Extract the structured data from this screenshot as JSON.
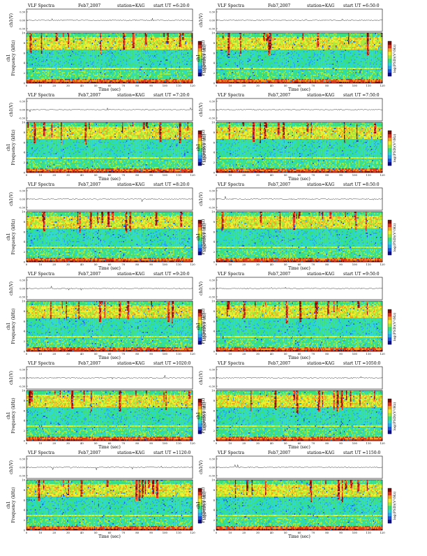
{
  "colors": {
    "colormap": [
      "#0b0b8c",
      "#1f4fe0",
      "#2aa6f0",
      "#29d8d0",
      "#39e07a",
      "#a6e83a",
      "#f0ee2a",
      "#f6a21d",
      "#e2361c",
      "#7a0c0c"
    ],
    "background": "#ffffff",
    "axis": "#000000"
  },
  "chart_data": [
    {
      "type": "heatmap",
      "title_left": "VLF Spectra",
      "date": "Feb7,2007",
      "station": "station=KAG",
      "start": "start UT =6:20:0",
      "top_ylabel": "ch1(V)",
      "top_yticks": [
        "0.30",
        "0.00",
        "-0.30"
      ],
      "ylabel_channel": "ch1",
      "ylabel": "Frequency (kHz)",
      "yticks": [
        "0",
        "2",
        "4",
        "6",
        "8",
        "10"
      ],
      "xlabel": "Time (sec)",
      "xticks": [
        "0",
        "10",
        "20",
        "30",
        "40",
        "50",
        "60",
        "70",
        "80",
        "90",
        "100",
        "110",
        "120"
      ],
      "colorbar_label": "log(PSD)(V²/Hz)",
      "xlim": [
        0,
        120
      ],
      "ylim": [
        0,
        10
      ]
    },
    {
      "type": "heatmap",
      "title_left": "VLF Spectra",
      "date": "Feb7,2007",
      "station": "station=KAG",
      "start": "start UT =6:50:0",
      "top_ylabel": "ch1(V)",
      "top_yticks": [
        "0.30",
        "0.00",
        "-0.30"
      ],
      "ylabel_channel": "ch1",
      "ylabel": "Frequency (kHz)",
      "yticks": [
        "0",
        "2",
        "4",
        "6",
        "8",
        "10"
      ],
      "xlabel": "Time (sec)",
      "xticks": [
        "0",
        "10",
        "20",
        "30",
        "40",
        "50",
        "60",
        "70",
        "80",
        "90",
        "100",
        "110",
        "120"
      ],
      "colorbar_label": "log(PSD)(V²/Hz)",
      "xlim": [
        0,
        120
      ],
      "ylim": [
        0,
        10
      ]
    },
    {
      "type": "heatmap",
      "title_left": "VLF Spectra",
      "date": "Feb7,2007",
      "station": "station=KAG",
      "start": "start UT =7:20:0",
      "top_ylabel": "ch1(V)",
      "top_yticks": [
        "0.30",
        "0.00",
        "-0.30"
      ],
      "ylabel_channel": "ch1",
      "ylabel": "Frequency (kHz)",
      "yticks": [
        "0",
        "2",
        "4",
        "6",
        "8",
        "10"
      ],
      "xlabel": "Time (sec)",
      "xticks": [
        "0",
        "10",
        "20",
        "30",
        "40",
        "50",
        "60",
        "70",
        "80",
        "90",
        "100",
        "110",
        "120"
      ],
      "colorbar_label": "log(PSD)(V²/Hz)",
      "xlim": [
        0,
        120
      ],
      "ylim": [
        0,
        10
      ]
    },
    {
      "type": "heatmap",
      "title_left": "VLF Spectra",
      "date": "Feb7,2007",
      "station": "station=KAG",
      "start": "start UT =7:50:0",
      "top_ylabel": "ch1(V)",
      "top_yticks": [
        "0.30",
        "0.00",
        "-0.30"
      ],
      "ylabel_channel": "ch1",
      "ylabel": "Frequency (kHz)",
      "yticks": [
        "0",
        "2",
        "4",
        "6",
        "8",
        "10"
      ],
      "xlabel": "Time (sec)",
      "xticks": [
        "0",
        "10",
        "20",
        "30",
        "40",
        "50",
        "60",
        "70",
        "80",
        "90",
        "100",
        "110",
        "120"
      ],
      "colorbar_label": "log(PSD)(V²/Hz)",
      "xlim": [
        0,
        120
      ],
      "ylim": [
        0,
        10
      ]
    },
    {
      "type": "heatmap",
      "title_left": "VLF Spectra",
      "date": "Feb7,2007",
      "station": "station=KAG",
      "start": "start UT =8:20:0",
      "top_ylabel": "ch1(V)",
      "top_yticks": [
        "0.30",
        "0.00",
        "-0.30"
      ],
      "ylabel_channel": "ch1",
      "ylabel": "Frequency (kHz)",
      "yticks": [
        "0",
        "2",
        "4",
        "6",
        "8",
        "10"
      ],
      "xlabel": "Time (sec)",
      "xticks": [
        "0",
        "10",
        "20",
        "30",
        "40",
        "50",
        "60",
        "70",
        "80",
        "90",
        "100",
        "110",
        "120"
      ],
      "colorbar_label": "log(PSD)(V²/Hz)",
      "xlim": [
        0,
        120
      ],
      "ylim": [
        0,
        10
      ]
    },
    {
      "type": "heatmap",
      "title_left": "VLF Spectra",
      "date": "Feb7,2007",
      "station": "station=KAG",
      "start": "start UT =8:50:0",
      "top_ylabel": "ch1(V)",
      "top_yticks": [
        "0.30",
        "0.00",
        "-0.30"
      ],
      "ylabel_channel": "ch1",
      "ylabel": "Frequency (kHz)",
      "yticks": [
        "0",
        "2",
        "4",
        "6",
        "8",
        "10"
      ],
      "xlabel": "Time (sec)",
      "xticks": [
        "0",
        "10",
        "20",
        "30",
        "40",
        "50",
        "60",
        "70",
        "80",
        "90",
        "100",
        "110",
        "120"
      ],
      "colorbar_label": "log(PSD)(V²/Hz)",
      "xlim": [
        0,
        120
      ],
      "ylim": [
        0,
        10
      ]
    },
    {
      "type": "heatmap",
      "title_left": "VLF Spectra",
      "date": "Feb7,2007",
      "station": "station=KAG",
      "start": "start UT =9:20:0",
      "top_ylabel": "ch1(V)",
      "top_yticks": [
        "0.30",
        "0.00",
        "-0.30"
      ],
      "ylabel_channel": "ch1",
      "ylabel": "Frequency (kHz)",
      "yticks": [
        "0",
        "2",
        "4",
        "6",
        "8",
        "10"
      ],
      "xlabel": "Time (sec)",
      "xticks": [
        "0",
        "10",
        "20",
        "30",
        "40",
        "50",
        "60",
        "70",
        "80",
        "90",
        "100",
        "110",
        "120"
      ],
      "colorbar_label": "log(PSD)(V²/Hz)",
      "xlim": [
        0,
        120
      ],
      "ylim": [
        0,
        10
      ]
    },
    {
      "type": "heatmap",
      "title_left": "VLF Spectra",
      "date": "Feb7,2007",
      "station": "station=KAG",
      "start": "start UT =9:50:0",
      "top_ylabel": "ch1(V)",
      "top_yticks": [
        "0.30",
        "0.00",
        "-0.30"
      ],
      "ylabel_channel": "ch1",
      "ylabel": "Frequency (kHz)",
      "yticks": [
        "0",
        "2",
        "4",
        "6",
        "8",
        "10"
      ],
      "xlabel": "Time (sec)",
      "xticks": [
        "0",
        "10",
        "20",
        "30",
        "40",
        "50",
        "60",
        "70",
        "80",
        "90",
        "100",
        "110",
        "120"
      ],
      "colorbar_label": "log(PSD)(V²/Hz)",
      "xlim": [
        0,
        120
      ],
      "ylim": [
        0,
        10
      ]
    },
    {
      "type": "heatmap",
      "title_left": "VLF Spectra",
      "date": "Feb7,2007",
      "station": "station=KAG",
      "start": "start UT =1020:0",
      "top_ylabel": "ch1(V)",
      "top_yticks": [
        "0.30",
        "0.00",
        "-0.30"
      ],
      "ylabel_channel": "ch1",
      "ylabel": "Frequency (kHz)",
      "yticks": [
        "0",
        "2",
        "4",
        "6",
        "8",
        "10"
      ],
      "xlabel": "Time (sec)",
      "xticks": [
        "0",
        "10",
        "20",
        "30",
        "40",
        "50",
        "60",
        "70",
        "80",
        "90",
        "100",
        "110",
        "120"
      ],
      "colorbar_label": "log(PSD)(V²/Hz)",
      "xlim": [
        0,
        120
      ],
      "ylim": [
        0,
        10
      ]
    },
    {
      "type": "heatmap",
      "title_left": "VLF Spectra",
      "date": "Feb7,2007",
      "station": "station=KAG",
      "start": "start UT =1050:0",
      "top_ylabel": "ch1(V)",
      "top_yticks": [
        "0.30",
        "0.00",
        "-0.30"
      ],
      "ylabel_channel": "ch1",
      "ylabel": "Frequency (kHz)",
      "yticks": [
        "0",
        "2",
        "4",
        "6",
        "8",
        "10"
      ],
      "xlabel": "Time (sec)",
      "xticks": [
        "0",
        "10",
        "20",
        "30",
        "40",
        "50",
        "60",
        "70",
        "80",
        "90",
        "100",
        "110",
        "120"
      ],
      "colorbar_label": "log(PSD)(V²/Hz)",
      "xlim": [
        0,
        120
      ],
      "ylim": [
        0,
        10
      ]
    },
    {
      "type": "heatmap",
      "title_left": "VLF Spectra",
      "date": "Feb7,2007",
      "station": "station=KAG",
      "start": "start UT =1120:0",
      "top_ylabel": "ch1(V)",
      "top_yticks": [
        "0.30",
        "0.00",
        "-0.30"
      ],
      "ylabel_channel": "ch1",
      "ylabel": "Frequency (kHz)",
      "yticks": [
        "0",
        "2",
        "4",
        "6",
        "8",
        "10"
      ],
      "xlabel": "Time (sec)",
      "xticks": [
        "0",
        "10",
        "20",
        "30",
        "40",
        "50",
        "60",
        "70",
        "80",
        "90",
        "100",
        "110",
        "120"
      ],
      "colorbar_label": "log(PSD)(V²/Hz)",
      "xlim": [
        0,
        120
      ],
      "ylim": [
        0,
        10
      ]
    },
    {
      "type": "heatmap",
      "title_left": "VLF Spectra",
      "date": "Feb7,2007",
      "station": "station=KAG",
      "start": "start UT =1150:0",
      "top_ylabel": "ch1(V)",
      "top_yticks": [
        "0.30",
        "0.00",
        "-0.30"
      ],
      "ylabel_channel": "ch1",
      "ylabel": "Frequency (kHz)",
      "yticks": [
        "0",
        "2",
        "4",
        "6",
        "8",
        "10"
      ],
      "xlabel": "Time (sec)",
      "xticks": [
        "0",
        "10",
        "20",
        "30",
        "40",
        "50",
        "60",
        "70",
        "80",
        "90",
        "100",
        "110",
        "120"
      ],
      "colorbar_label": "log(PSD)(V²/Hz)",
      "xlim": [
        0,
        120
      ],
      "ylim": [
        0,
        10
      ]
    }
  ]
}
